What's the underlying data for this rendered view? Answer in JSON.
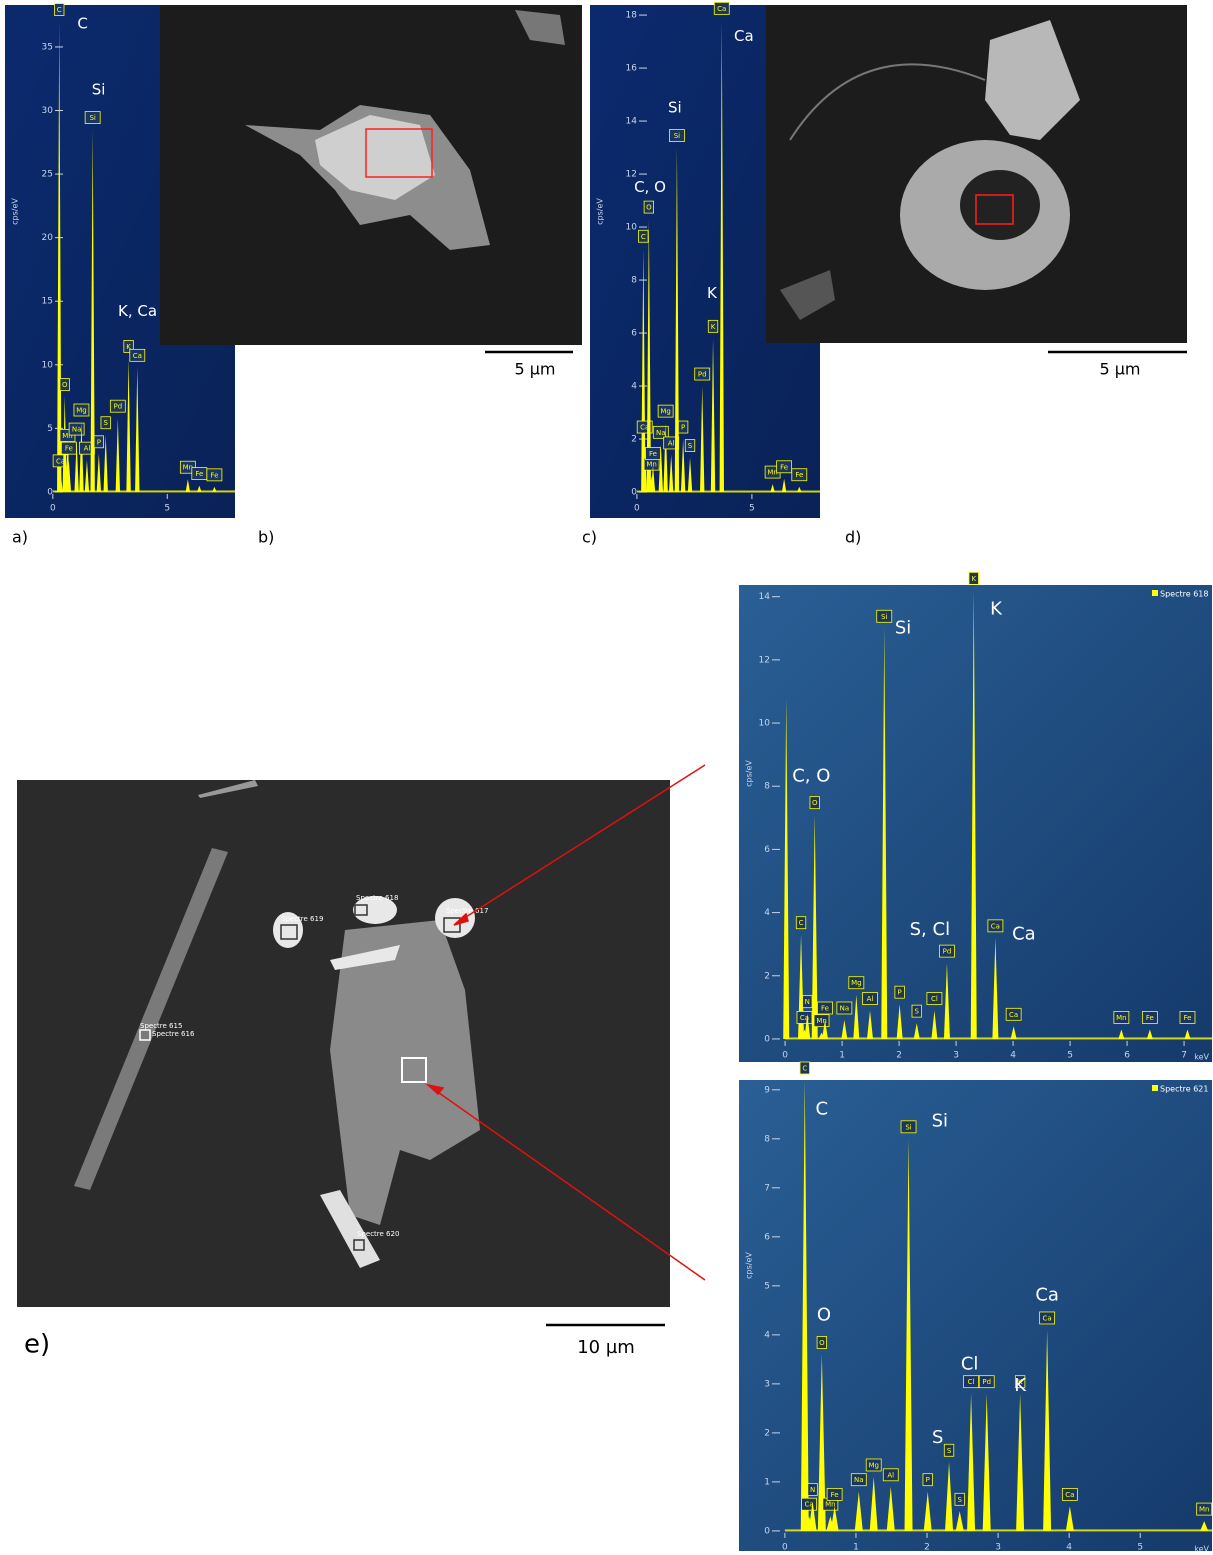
{
  "chart_data": [
    {
      "type": "spectrum",
      "y_label": "cps/eV",
      "color": "#ffff00",
      "xlim": [
        -0.43,
        7.96
      ],
      "ylim": [
        -2.05,
        38.3
      ],
      "xticks": [
        0,
        5
      ],
      "yticks": [
        0,
        5,
        10,
        15,
        20,
        25,
        30,
        35
      ],
      "peaks": [
        {
          "label": "C",
          "x": 0.28,
          "y": 37
        },
        {
          "label": "Ca",
          "x": 0.34,
          "y": 1.5
        },
        {
          "label": "O",
          "x": 0.52,
          "y": 7.5
        },
        {
          "label": "Mn",
          "x": 0.64,
          "y": 3.5
        },
        {
          "label": "Fe",
          "x": 0.7,
          "y": 2.5
        },
        {
          "label": "Na",
          "x": 1.04,
          "y": 4
        },
        {
          "label": "Mg",
          "x": 1.25,
          "y": 5.5
        },
        {
          "label": "Al",
          "x": 1.49,
          "y": 2.5
        },
        {
          "label": "Si",
          "x": 1.74,
          "y": 28.5
        },
        {
          "label": "P",
          "x": 2.01,
          "y": 3
        },
        {
          "label": "S",
          "x": 2.31,
          "y": 4.5
        },
        {
          "label": "Pd",
          "x": 2.84,
          "y": 5.8
        },
        {
          "label": "K",
          "x": 3.31,
          "y": 10.5
        },
        {
          "label": "Ca",
          "x": 3.69,
          "y": 9.8
        },
        {
          "label": "Mn",
          "x": 5.9,
          "y": 1
        },
        {
          "label": "Fe",
          "x": 6.4,
          "y": 0.5
        },
        {
          "label": "Fe",
          "x": 7.06,
          "y": 0.4
        }
      ],
      "annotations": [
        {
          "text": "C",
          "x": 1.3,
          "y": 36.8
        },
        {
          "text": "Si",
          "x": 2.0,
          "y": 31.6
        },
        {
          "text": "K, Ca",
          "x": 3.7,
          "y": 14.2
        }
      ]
    },
    {
      "type": "spectrum",
      "y_label": "cps/eV",
      "color": "#ffff00",
      "xlim": [
        -0.43,
        7.96
      ],
      "ylim": [
        -0.98,
        18.38
      ],
      "xticks": [
        0,
        5
      ],
      "yticks": [
        0,
        2,
        4,
        6,
        8,
        10,
        12,
        14,
        16,
        18
      ],
      "peaks": [
        {
          "label": "C",
          "x": 0.28,
          "y": 9.2
        },
        {
          "label": "Ca",
          "x": 0.34,
          "y": 2
        },
        {
          "label": "O",
          "x": 0.52,
          "y": 10.3
        },
        {
          "label": "Mn",
          "x": 0.64,
          "y": 0.6
        },
        {
          "label": "Fe",
          "x": 0.7,
          "y": 1
        },
        {
          "label": "Na",
          "x": 1.04,
          "y": 1.8
        },
        {
          "label": "Mg",
          "x": 1.25,
          "y": 2.6
        },
        {
          "label": "Al",
          "x": 1.49,
          "y": 1.4
        },
        {
          "label": "Si",
          "x": 1.74,
          "y": 13
        },
        {
          "label": "P",
          "x": 2.01,
          "y": 2
        },
        {
          "label": "S",
          "x": 2.31,
          "y": 1.3
        },
        {
          "label": "Pd",
          "x": 2.84,
          "y": 4
        },
        {
          "label": "K",
          "x": 3.31,
          "y": 5.8
        },
        {
          "label": "Ca",
          "x": 3.69,
          "y": 17.8
        },
        {
          "label": "Mn",
          "x": 5.9,
          "y": 0.3
        },
        {
          "label": "Fe",
          "x": 6.4,
          "y": 0.5
        },
        {
          "label": "Fe",
          "x": 7.06,
          "y": 0.2
        }
      ],
      "annotations": [
        {
          "text": "Ca",
          "x": 4.65,
          "y": 17.2
        },
        {
          "text": "Si",
          "x": 1.65,
          "y": 14.5
        },
        {
          "text": "C, O",
          "x": 0.57,
          "y": 11.5
        },
        {
          "text": "K",
          "x": 3.26,
          "y": 7.5
        }
      ]
    },
    {
      "type": "spectrum",
      "y_label": "cps/eV",
      "x_label": "keV",
      "legend": "Spectre 618",
      "color": "#ffff00",
      "xlim": [
        -0.44,
        7.49
      ],
      "ylim": [
        -0.73,
        14.37
      ],
      "xticks": [
        0,
        1,
        2,
        3,
        4,
        5,
        6,
        7
      ],
      "yticks": [
        0,
        2,
        4,
        6,
        8,
        10,
        12,
        14
      ],
      "peaks": [
        {
          "label": null,
          "x": 0.02,
          "y": 10.8
        },
        {
          "label": "C",
          "x": 0.28,
          "y": 3.3
        },
        {
          "label": "Ca",
          "x": 0.34,
          "y": 0.3
        },
        {
          "label": "N",
          "x": 0.39,
          "y": 0.8
        },
        {
          "label": "O",
          "x": 0.52,
          "y": 7.1
        },
        {
          "label": "Mn",
          "x": 0.64,
          "y": 0.2
        },
        {
          "label": "Fe",
          "x": 0.7,
          "y": 0.6
        },
        {
          "label": "Na",
          "x": 1.04,
          "y": 0.6
        },
        {
          "label": "Mg",
          "x": 1.25,
          "y": 1.4
        },
        {
          "label": "Al",
          "x": 1.49,
          "y": 0.9
        },
        {
          "label": "Si",
          "x": 1.74,
          "y": 13
        },
        {
          "label": "P",
          "x": 2.01,
          "y": 1.1
        },
        {
          "label": "S",
          "x": 2.31,
          "y": 0.5
        },
        {
          "label": "Cl",
          "x": 2.62,
          "y": 0.9
        },
        {
          "label": "Pd",
          "x": 2.84,
          "y": 2.4
        },
        {
          "label": "K",
          "x": 3.31,
          "y": 14.2
        },
        {
          "label": "Ca",
          "x": 3.69,
          "y": 3.2
        },
        {
          "label": "Ca",
          "x": 4.01,
          "y": 0.4
        },
        {
          "label": "Mn",
          "x": 5.9,
          "y": 0.3
        },
        {
          "label": "Fe",
          "x": 6.4,
          "y": 0.3
        },
        {
          "label": "Fe",
          "x": 7.06,
          "y": 0.3
        }
      ],
      "annotations": [
        {
          "text": "Si",
          "x": 2.07,
          "y": 13.0
        },
        {
          "text": "K",
          "x": 3.7,
          "y": 13.6
        },
        {
          "text": "C, O",
          "x": 0.46,
          "y": 8.3
        },
        {
          "text": "S, Cl",
          "x": 2.54,
          "y": 3.45
        },
        {
          "text": "Ca",
          "x": 4.19,
          "y": 3.3
        }
      ]
    },
    {
      "type": "spectrum",
      "y_label": "cps/eV",
      "x_label": "keV",
      "legend": "Spectre 621",
      "color": "#ffff00",
      "xlim": [
        -0.35,
        6.01
      ],
      "ylim": [
        -0.41,
        9.2
      ],
      "xticks": [
        0,
        1,
        2,
        3,
        4,
        5
      ],
      "yticks": [
        0,
        1,
        2,
        3,
        4,
        5,
        6,
        7,
        8,
        9
      ],
      "peaks": [
        {
          "label": "C",
          "x": 0.28,
          "y": 9.2
        },
        {
          "label": "Ca",
          "x": 0.34,
          "y": 0.3
        },
        {
          "label": "N",
          "x": 0.39,
          "y": 0.6
        },
        {
          "label": "O",
          "x": 0.52,
          "y": 3.6
        },
        {
          "label": "Mn",
          "x": 0.64,
          "y": 0.3
        },
        {
          "label": "Fe",
          "x": 0.7,
          "y": 0.5
        },
        {
          "label": "Na",
          "x": 1.04,
          "y": 0.8
        },
        {
          "label": "Mg",
          "x": 1.25,
          "y": 1.1
        },
        {
          "label": "Al",
          "x": 1.49,
          "y": 0.9
        },
        {
          "label": "Si",
          "x": 1.74,
          "y": 8.0
        },
        {
          "label": "P",
          "x": 2.01,
          "y": 0.8
        },
        {
          "label": "S",
          "x": 2.31,
          "y": 1.4
        },
        {
          "label": "S",
          "x": 2.46,
          "y": 0.4
        },
        {
          "label": "Cl",
          "x": 2.62,
          "y": 2.8
        },
        {
          "label": "Pd",
          "x": 2.84,
          "y": 2.8
        },
        {
          "label": "K",
          "x": 3.31,
          "y": 2.8
        },
        {
          "label": "Ca",
          "x": 3.69,
          "y": 4.1
        },
        {
          "label": "Ca",
          "x": 4.01,
          "y": 0.5
        },
        {
          "label": "Mn",
          "x": 5.9,
          "y": 0.2
        }
      ],
      "annotations": [
        {
          "text": "C",
          "x": 0.52,
          "y": 8.6
        },
        {
          "text": "Si",
          "x": 2.18,
          "y": 8.35
        },
        {
          "text": "O",
          "x": 0.55,
          "y": 4.4
        },
        {
          "text": "Ca",
          "x": 3.69,
          "y": 4.8
        },
        {
          "text": "Cl",
          "x": 2.6,
          "y": 3.4
        },
        {
          "text": "K",
          "x": 3.31,
          "y": 2.96
        },
        {
          "text": "S",
          "x": 2.15,
          "y": 1.9
        }
      ]
    }
  ],
  "panel_labels": [
    "a)",
    "b)",
    "c)",
    "d)",
    "e)"
  ],
  "scale_bars": [
    "5 µm",
    "5 µm",
    "10 µm"
  ],
  "sem_spots": [
    "Spectre 615",
    "Spectre 616",
    "Spectre 618",
    "Spectre 619",
    "Spectre 617",
    "Spectre 620"
  ]
}
